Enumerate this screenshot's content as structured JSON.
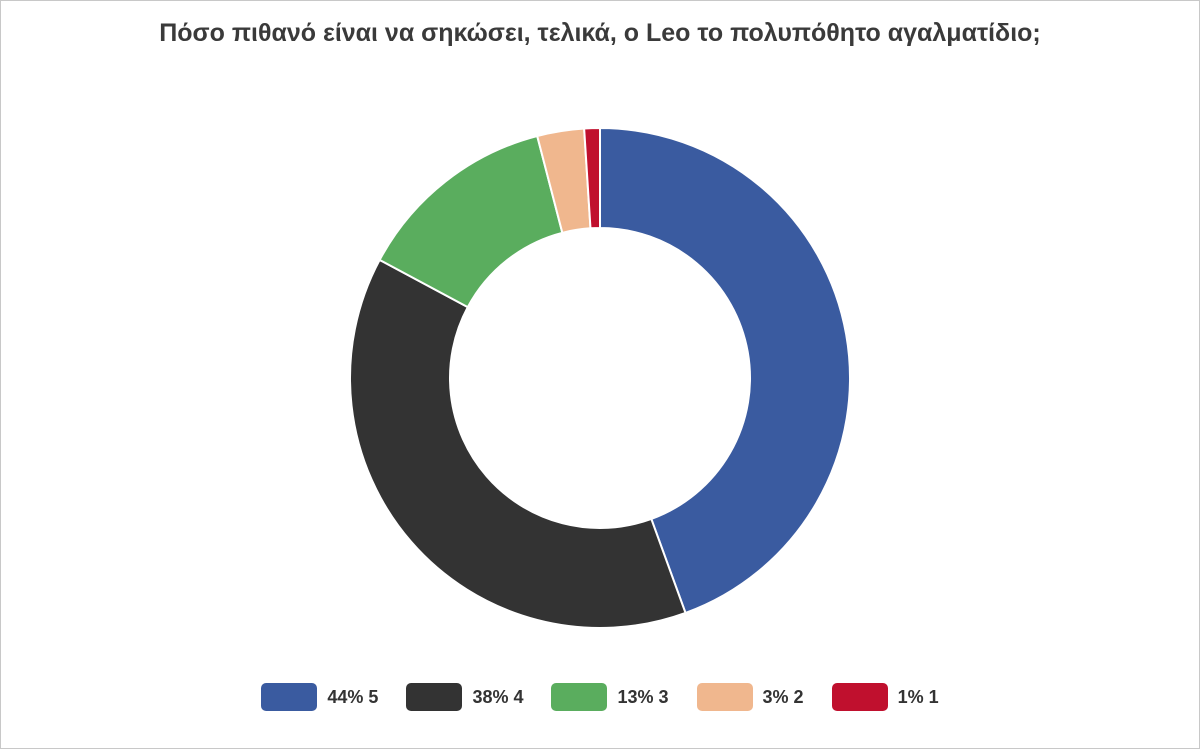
{
  "chart_data": {
    "type": "pie",
    "subtype": "donut",
    "title": "Πόσο πιθανό είναι να σηκώσει, τελικά, ο Leo το πολυπόθητο αγαλματίδιο;",
    "slices": [
      {
        "category": "5",
        "percent": 44,
        "label": "44% 5",
        "color": "#3a5ba0"
      },
      {
        "category": "4",
        "percent": 38,
        "label": "38% 4",
        "color": "#333333"
      },
      {
        "category": "3",
        "percent": 13,
        "label": "13% 3",
        "color": "#5aad5e"
      },
      {
        "category": "2",
        "percent": 3,
        "label": "3% 2",
        "color": "#f0b78e"
      },
      {
        "category": "1",
        "percent": 1,
        "label": "1% 1",
        "color": "#c0102e"
      }
    ],
    "legend_position": "bottom"
  }
}
